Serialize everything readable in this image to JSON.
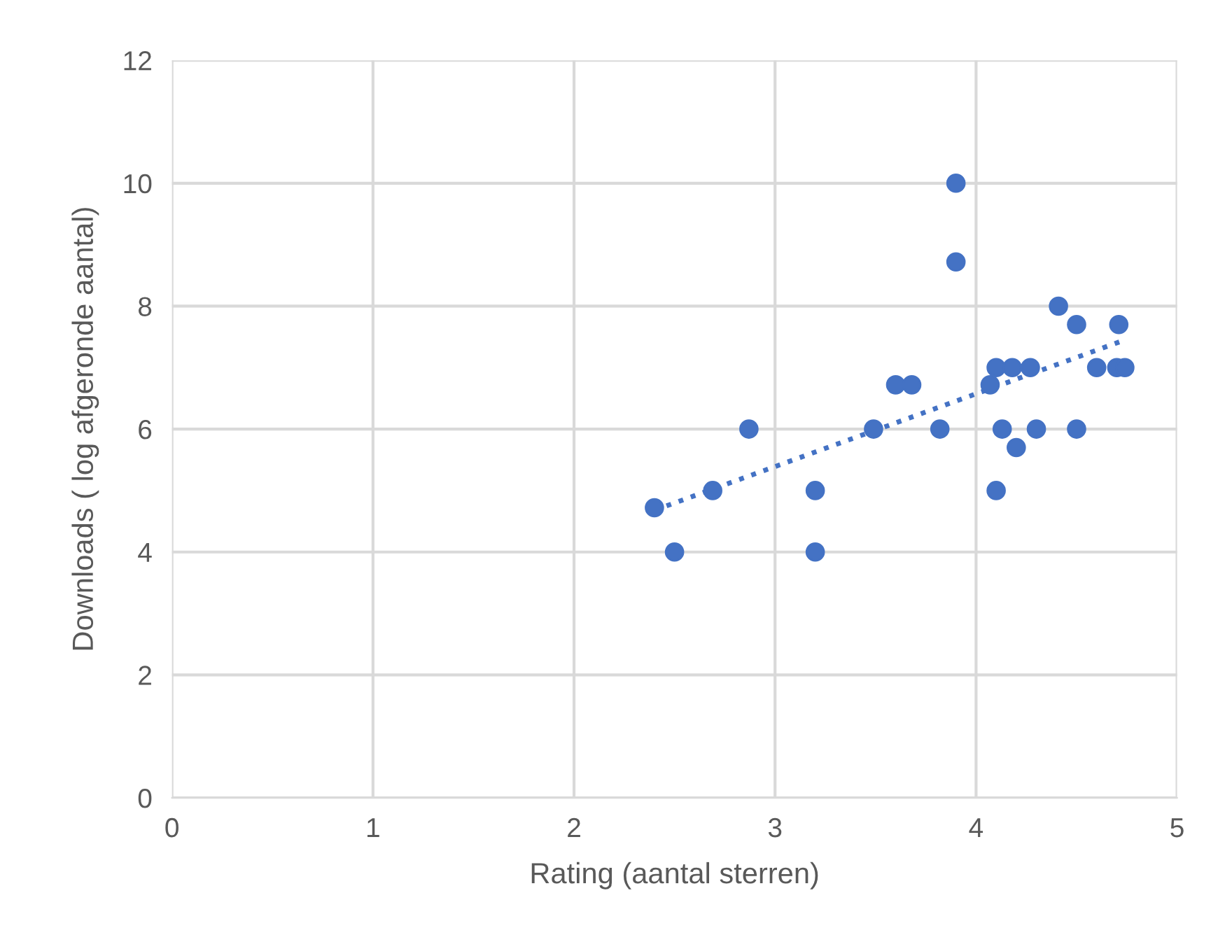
{
  "chart_data": {
    "type": "scatter",
    "xlabel": "Rating (aantal sterren)",
    "ylabel": "Downloads ( log afgeronde aantal)",
    "xlim": [
      0,
      5
    ],
    "xticks": [
      0,
      1,
      2,
      3,
      4,
      5
    ],
    "ylim": [
      0,
      12
    ],
    "yticks": [
      0,
      2,
      4,
      6,
      8,
      10,
      12
    ],
    "grid": true,
    "legend": false,
    "series": [
      {
        "color": "#4472c4",
        "marker": "circle",
        "x": [
          2.4,
          2.5,
          2.69,
          2.87,
          3.2,
          3.2,
          3.49,
          3.6,
          3.68,
          3.82,
          3.9,
          3.9,
          4.07,
          4.1,
          4.1,
          4.13,
          4.18,
          4.2,
          4.27,
          4.3,
          4.41,
          4.5,
          4.5,
          4.6,
          4.7,
          4.71,
          4.74
        ],
        "values": [
          4.72,
          4,
          5,
          6,
          5,
          4,
          6,
          6.72,
          6.72,
          6,
          10,
          8.72,
          6.72,
          7,
          5,
          6,
          7,
          5.7,
          7,
          6,
          8,
          7.7,
          6,
          7,
          7,
          7.7,
          7
        ]
      },
      {
        "type": "line",
        "color": "#4472c4",
        "line_style": "dotted",
        "marker": "none",
        "x": [
          2.4,
          4.74
        ],
        "values": [
          4.68,
          7.45
        ]
      }
    ]
  }
}
